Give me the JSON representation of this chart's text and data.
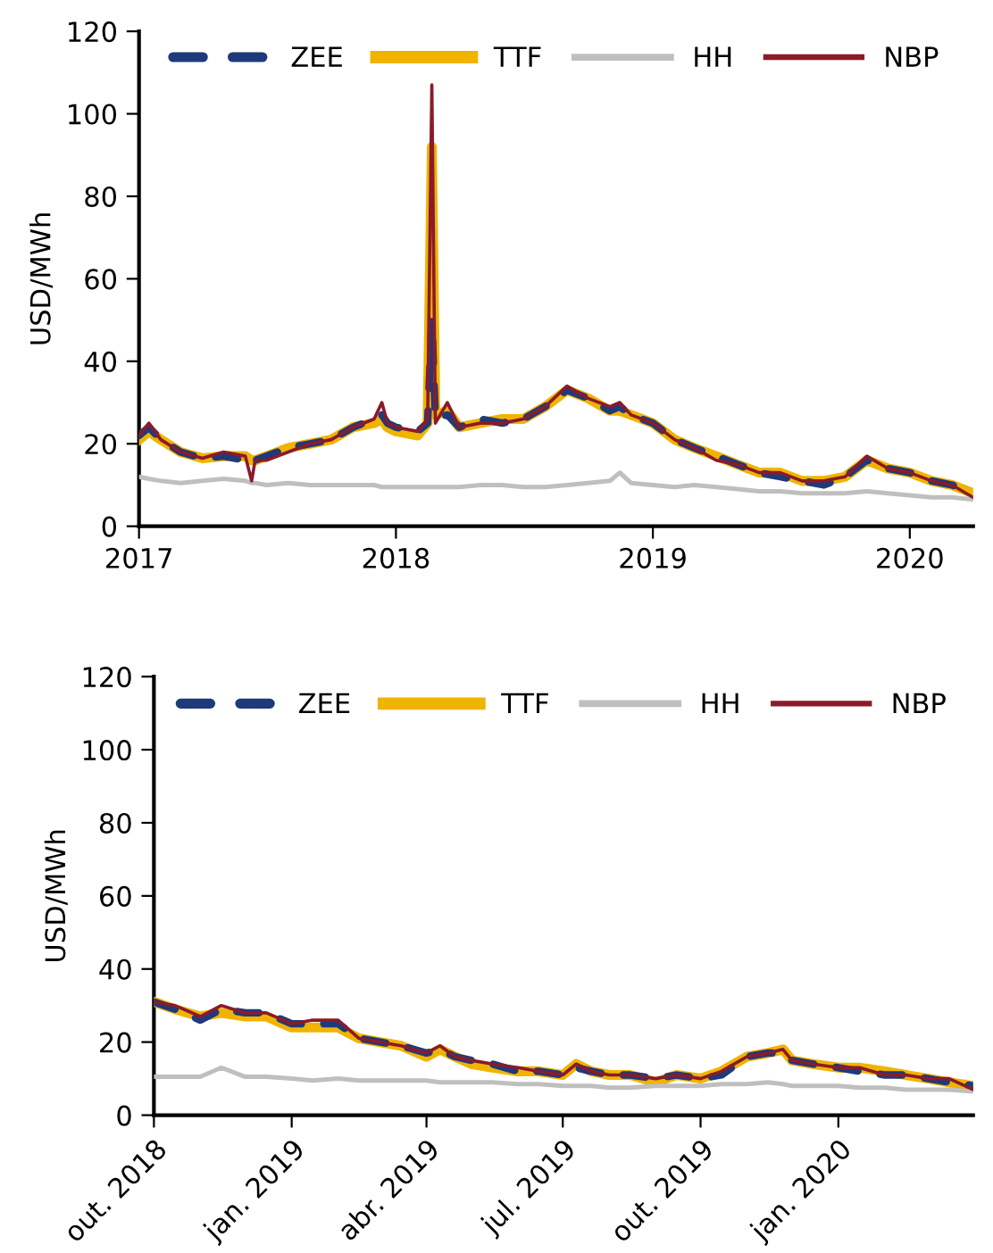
{
  "chart_data": [
    {
      "type": "line",
      "ylabel": "USD/MWh",
      "legend": "top",
      "grid": false,
      "x": [
        "2017-01-01",
        "2017-01-15",
        "2017-02-01",
        "2017-03-01",
        "2017-04-01",
        "2017-05-01",
        "2017-06-01",
        "2017-06-10",
        "2017-06-15",
        "2017-07-01",
        "2017-08-01",
        "2017-09-01",
        "2017-10-01",
        "2017-11-01",
        "2017-12-01",
        "2017-12-12",
        "2017-12-20",
        "2018-01-01",
        "2018-02-01",
        "2018-02-15",
        "2018-02-21",
        "2018-02-26",
        "2018-03-15",
        "2018-04-01",
        "2018-05-01",
        "2018-06-01",
        "2018-07-01",
        "2018-08-01",
        "2018-09-01",
        "2018-10-01",
        "2018-11-01",
        "2018-11-15",
        "2018-12-01",
        "2019-01-01",
        "2019-02-01",
        "2019-03-01",
        "2019-04-01",
        "2019-05-01",
        "2019-06-01",
        "2019-07-01",
        "2019-08-01",
        "2019-09-01",
        "2019-10-01",
        "2019-11-01",
        "2019-12-01",
        "2020-01-01",
        "2020-02-01",
        "2020-03-01",
        "2020-03-31"
      ],
      "xlim": [
        "2017-01-01",
        "2020-03-31"
      ],
      "xticks": [
        {
          "value": "2017-01-01",
          "label": "2017"
        },
        {
          "value": "2018-01-01",
          "label": "2018"
        },
        {
          "value": "2019-01-01",
          "label": "2019"
        },
        {
          "value": "2020-01-01",
          "label": "2020"
        }
      ],
      "ylim": [
        0,
        120
      ],
      "yticks": [
        0,
        20,
        40,
        60,
        80,
        100,
        120
      ],
      "series": [
        {
          "name": "ZEE",
          "color": "#1f3a7a",
          "line_style": "dashed",
          "values": [
            22,
            24,
            21,
            18,
            16.5,
            17,
            16,
            15,
            16,
            17,
            19,
            20,
            21,
            24,
            26,
            27,
            25,
            24,
            23,
            25,
            50,
            26,
            27,
            24,
            26,
            25,
            26,
            29,
            33,
            31,
            28,
            29,
            27,
            25,
            21,
            19,
            17,
            15,
            13,
            12,
            11,
            10,
            12,
            16,
            14,
            13,
            11,
            10,
            8
          ]
        },
        {
          "name": "TTF",
          "color": "#f0b400",
          "line_style": "solid",
          "values": [
            21,
            23,
            21,
            18,
            16.5,
            17,
            17,
            16,
            16,
            17,
            19,
            20,
            21,
            24,
            25,
            26,
            24,
            23,
            22,
            25,
            92,
            27,
            28,
            24,
            25,
            26,
            26,
            29,
            33,
            31,
            28,
            28,
            27,
            25,
            21,
            19,
            17,
            15,
            13,
            13,
            11,
            11,
            12,
            16,
            14,
            13,
            11,
            10,
            8
          ]
        },
        {
          "name": "HH",
          "color": "#bfbfbf",
          "line_style": "solid",
          "values": [
            12,
            11.5,
            11,
            10.5,
            11,
            11.5,
            11,
            10.5,
            10.5,
            10,
            10.5,
            10,
            10,
            10,
            10,
            9.5,
            9.5,
            9.5,
            9.5,
            9.5,
            9.5,
            9.5,
            9.5,
            9.5,
            10,
            10,
            9.5,
            9.5,
            10,
            10.5,
            11,
            13,
            10.5,
            10,
            9.5,
            10,
            9.5,
            9,
            8.5,
            8.5,
            8,
            8,
            8,
            8.5,
            8,
            7.5,
            7,
            7,
            6.5
          ]
        },
        {
          "name": "NBP",
          "color": "#8b1a2b",
          "line_style": "solid",
          "values": [
            22,
            25,
            21,
            18,
            16.5,
            18,
            17,
            11,
            16,
            16,
            18,
            20,
            21,
            24,
            26,
            30,
            25,
            24,
            23,
            26,
            107,
            25,
            30,
            24,
            25,
            25,
            26,
            29,
            34,
            31,
            29,
            30,
            27,
            25,
            21,
            19,
            16,
            15,
            13,
            13,
            11,
            11,
            12,
            17,
            14,
            13,
            11,
            10,
            7
          ]
        }
      ]
    },
    {
      "type": "line",
      "ylabel": "USD/MWh",
      "legend": "top",
      "grid": false,
      "x": [
        "2018-10-01",
        "2018-10-15",
        "2018-11-01",
        "2018-11-15",
        "2018-12-01",
        "2018-12-15",
        "2019-01-01",
        "2019-01-15",
        "2019-02-01",
        "2019-02-15",
        "2019-03-01",
        "2019-03-15",
        "2019-04-01",
        "2019-04-10",
        "2019-04-20",
        "2019-05-01",
        "2019-05-15",
        "2019-06-01",
        "2019-06-15",
        "2019-07-01",
        "2019-07-10",
        "2019-07-20",
        "2019-08-01",
        "2019-08-15",
        "2019-09-01",
        "2019-09-15",
        "2019-10-01",
        "2019-10-15",
        "2019-11-01",
        "2019-11-15",
        "2019-11-25",
        "2019-12-01",
        "2019-12-15",
        "2020-01-01",
        "2020-01-15",
        "2020-02-01",
        "2020-02-15",
        "2020-03-01",
        "2020-03-15",
        "2020-03-31"
      ],
      "xlim": [
        "2018-10-01",
        "2020-03-31"
      ],
      "xticks": [
        {
          "value": "2018-10-01",
          "label": "out. 2018"
        },
        {
          "value": "2019-01-01",
          "label": "jan. 2019"
        },
        {
          "value": "2019-04-01",
          "label": "abr. 2019"
        },
        {
          "value": "2019-07-01",
          "label": "jul. 2019"
        },
        {
          "value": "2019-10-01",
          "label": "out. 2019"
        },
        {
          "value": "2020-01-01",
          "label": "jan. 2020"
        }
      ],
      "ylim": [
        0,
        120
      ],
      "yticks": [
        0,
        20,
        40,
        60,
        80,
        100,
        120
      ],
      "series": [
        {
          "name": "ZEE",
          "color": "#1f3a7a",
          "line_style": "dashed",
          "values": [
            31,
            29,
            26,
            29,
            28,
            28,
            25,
            25,
            25,
            21,
            20,
            19,
            17,
            18,
            16,
            15,
            14,
            12,
            12,
            11,
            13,
            12,
            11,
            11,
            10,
            11,
            10,
            11,
            16,
            17,
            17,
            15,
            14,
            13,
            12,
            11,
            11,
            10,
            9,
            8
          ]
        },
        {
          "name": "TTF",
          "color": "#f0b400",
          "line_style": "solid",
          "values": [
            31,
            29,
            27,
            28,
            27,
            27,
            24,
            24,
            24,
            21,
            20,
            19,
            16,
            18,
            16,
            14,
            13,
            12,
            12,
            11,
            14,
            12,
            11,
            11,
            9,
            11,
            10,
            12,
            16,
            17,
            18,
            15,
            14,
            13,
            13,
            12,
            11,
            10,
            9,
            8
          ]
        },
        {
          "name": "HH",
          "color": "#bfbfbf",
          "line_style": "solid",
          "values": [
            10.5,
            10.5,
            10.5,
            13,
            10.5,
            10.5,
            10,
            9.5,
            10,
            9.5,
            9.5,
            9.5,
            9.5,
            9,
            9,
            9,
            9,
            8.5,
            8.5,
            8,
            8,
            8,
            7.5,
            7.5,
            8,
            8,
            8,
            8.5,
            8.5,
            9,
            8.5,
            8,
            8,
            8,
            7.5,
            7.5,
            7,
            7,
            7,
            6.5
          ]
        },
        {
          "name": "NBP",
          "color": "#8b1a2b",
          "line_style": "solid",
          "values": [
            31,
            30,
            27,
            30,
            28,
            28,
            25,
            26,
            26,
            21,
            20,
            19,
            17,
            19,
            16,
            15,
            14,
            13,
            12,
            11,
            14,
            12,
            11,
            11,
            10,
            11,
            10,
            12,
            16,
            17,
            18,
            15,
            14,
            13,
            13,
            11,
            11,
            10,
            10,
            7
          ]
        }
      ]
    }
  ]
}
